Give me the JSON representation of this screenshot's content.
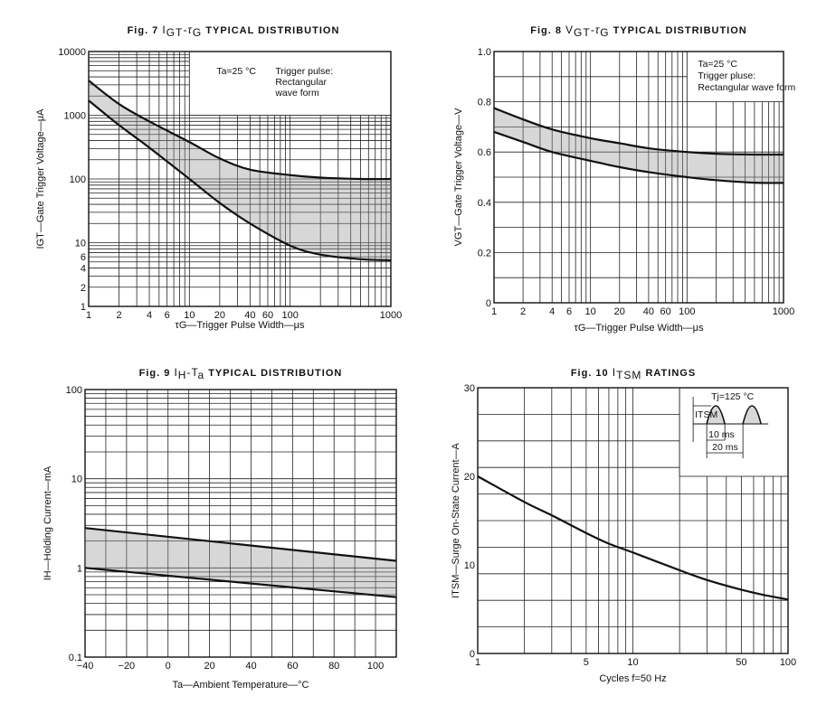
{
  "chart_data": [
    {
      "id": "fig7",
      "type": "area",
      "title": "Fig. 7  IGT-τG TYPICAL DISTRIBUTION",
      "title_parts": {
        "prefix": "Fig. 7",
        "sym1": "I",
        "sub1": "GT",
        "sep": "-τ",
        "sub2": "G",
        "suffix": "TYPICAL DISTRIBUTION"
      },
      "xlabel": "τG—Trigger Pulse Width—μs",
      "ylabel": "IGT—Gate Trigger Voltage—μA",
      "xscale": "log",
      "yscale": "log",
      "xlim": [
        1,
        1000
      ],
      "ylim": [
        1,
        10000
      ],
      "xticks": [
        1,
        2,
        4,
        6,
        10,
        20,
        40,
        60,
        100,
        1000
      ],
      "xtick_labels": [
        "1",
        "2",
        "4",
        "6",
        "10",
        "20",
        "40",
        "60",
        "100",
        "1000"
      ],
      "yticks": [
        1,
        2,
        4,
        6,
        10,
        100,
        1000,
        10000
      ],
      "ytick_labels": [
        "1",
        "2",
        "4",
        "6",
        "10",
        "100",
        "1000",
        "10000"
      ],
      "grid": true,
      "annotation": {
        "cond": "Ta=25 °C",
        "line1": "Trigger pulse:",
        "line2": "Rectangular",
        "line3": "wave form"
      },
      "series": [
        {
          "name": "upper",
          "x": [
            1,
            2,
            4,
            10,
            20,
            40,
            100,
            200,
            500,
            1000
          ],
          "y": [
            3500,
            1500,
            800,
            380,
            210,
            140,
            115,
            105,
            100,
            100
          ]
        },
        {
          "name": "lower",
          "x": [
            1,
            2,
            4,
            10,
            20,
            40,
            100,
            200,
            500,
            1000
          ],
          "y": [
            1700,
            700,
            310,
            100,
            42,
            20,
            9,
            6.5,
            5.5,
            5.3
          ]
        }
      ],
      "fill_between": [
        "upper",
        "lower"
      ]
    },
    {
      "id": "fig8",
      "type": "area",
      "title": "Fig. 8  VGT-τG TYPICAL DISTRIBUTION",
      "title_parts": {
        "prefix": "Fig. 8",
        "sym1": "V",
        "sub1": "GT",
        "sep": "-τ",
        "sub2": "G",
        "suffix": "TYPICAL DISTRIBUTION"
      },
      "xlabel": "τG—Trigger Pulse Width—μs",
      "ylabel": "VGT—Gate Trigger Voltage—V",
      "xscale": "log",
      "yscale": "linear",
      "xlim": [
        1,
        1000
      ],
      "ylim": [
        0,
        1.0
      ],
      "xticks": [
        1,
        2,
        4,
        6,
        10,
        20,
        40,
        60,
        100,
        1000
      ],
      "xtick_labels": [
        "1",
        "2",
        "4",
        "6",
        "10",
        "20",
        "40",
        "60",
        "100",
        "1000"
      ],
      "yticks": [
        0,
        0.2,
        0.4,
        0.6,
        0.8,
        1.0
      ],
      "ytick_labels": [
        "0",
        "0.2",
        "0.4",
        "0.6",
        "0.8",
        "1.0"
      ],
      "grid": true,
      "annotation": {
        "cond": "Ta=25 °C",
        "line1": "Trigger pluse:",
        "line2": "Rectangular wave form"
      },
      "series": [
        {
          "name": "upper",
          "x": [
            1,
            2,
            4,
            10,
            20,
            40,
            100,
            200,
            500,
            1000
          ],
          "y": [
            0.775,
            0.73,
            0.69,
            0.655,
            0.635,
            0.615,
            0.6,
            0.593,
            0.59,
            0.59
          ]
        },
        {
          "name": "lower",
          "x": [
            1,
            2,
            4,
            10,
            20,
            40,
            100,
            200,
            500,
            1000
          ],
          "y": [
            0.68,
            0.64,
            0.6,
            0.565,
            0.54,
            0.52,
            0.5,
            0.488,
            0.478,
            0.477
          ]
        }
      ],
      "fill_between": [
        "upper",
        "lower"
      ]
    },
    {
      "id": "fig9",
      "type": "area",
      "title": "Fig. 9  IH-Ta TYPICAL DISTRIBUTION",
      "title_parts": {
        "prefix": "Fig. 9",
        "sym1": "I",
        "sub1": "H",
        "sep": "-T",
        "sub2": "a",
        "suffix": "TYPICAL DISTRIBUTION"
      },
      "xlabel": "Ta—Ambient Temperature—°C",
      "ylabel": "IH—Holding Current—mA",
      "xscale": "linear",
      "yscale": "log",
      "xlim": [
        -40,
        110
      ],
      "ylim": [
        0.1,
        100
      ],
      "xticks": [
        -40,
        -20,
        0,
        20,
        40,
        60,
        80,
        100
      ],
      "xtick_labels": [
        "−40",
        "−20",
        "0",
        "20",
        "40",
        "60",
        "80",
        "100"
      ],
      "yticks": [
        0.1,
        1,
        10,
        100
      ],
      "ytick_labels": [
        "0.1",
        "1",
        "10",
        "100"
      ],
      "grid": true,
      "series": [
        {
          "name": "upper",
          "x": [
            -40,
            110
          ],
          "y": [
            2.8,
            1.2
          ]
        },
        {
          "name": "lower",
          "x": [
            -40,
            110
          ],
          "y": [
            1.0,
            0.47
          ]
        }
      ],
      "fill_between": [
        "upper",
        "lower"
      ]
    },
    {
      "id": "fig10",
      "type": "line",
      "title": "Fig. 10  ITSM RATINGS",
      "title_parts": {
        "prefix": "Fig. 10",
        "sym1": "I",
        "sub1": "TSM",
        "sep": "",
        "sub2": "",
        "suffix": "RATINGS"
      },
      "xlabel": "Cycles  f=50 Hz",
      "ylabel": "ITSM—Surge On-State Current—A",
      "xscale": "log",
      "yscale": "linear",
      "xlim": [
        1,
        100
      ],
      "ylim": [
        0,
        30
      ],
      "xticks": [
        1,
        5,
        10,
        50,
        100
      ],
      "xtick_labels": [
        "1",
        "5",
        "10",
        "50",
        "100"
      ],
      "yticks": [
        0,
        10,
        20,
        30
      ],
      "ytick_labels": [
        "0",
        "10",
        "20",
        "30"
      ],
      "grid": true,
      "inset": {
        "cond": "Tj=125 °C",
        "symbol": "ITSM",
        "t1": "10 ms",
        "t2": "20 ms"
      },
      "series": [
        {
          "name": "ITSM",
          "x": [
            1,
            2,
            3,
            5,
            7,
            10,
            20,
            30,
            50,
            70,
            100
          ],
          "y": [
            20,
            17.1,
            15.6,
            13.6,
            12.4,
            11.4,
            9.4,
            8.3,
            7.2,
            6.6,
            6.1
          ]
        }
      ]
    }
  ]
}
